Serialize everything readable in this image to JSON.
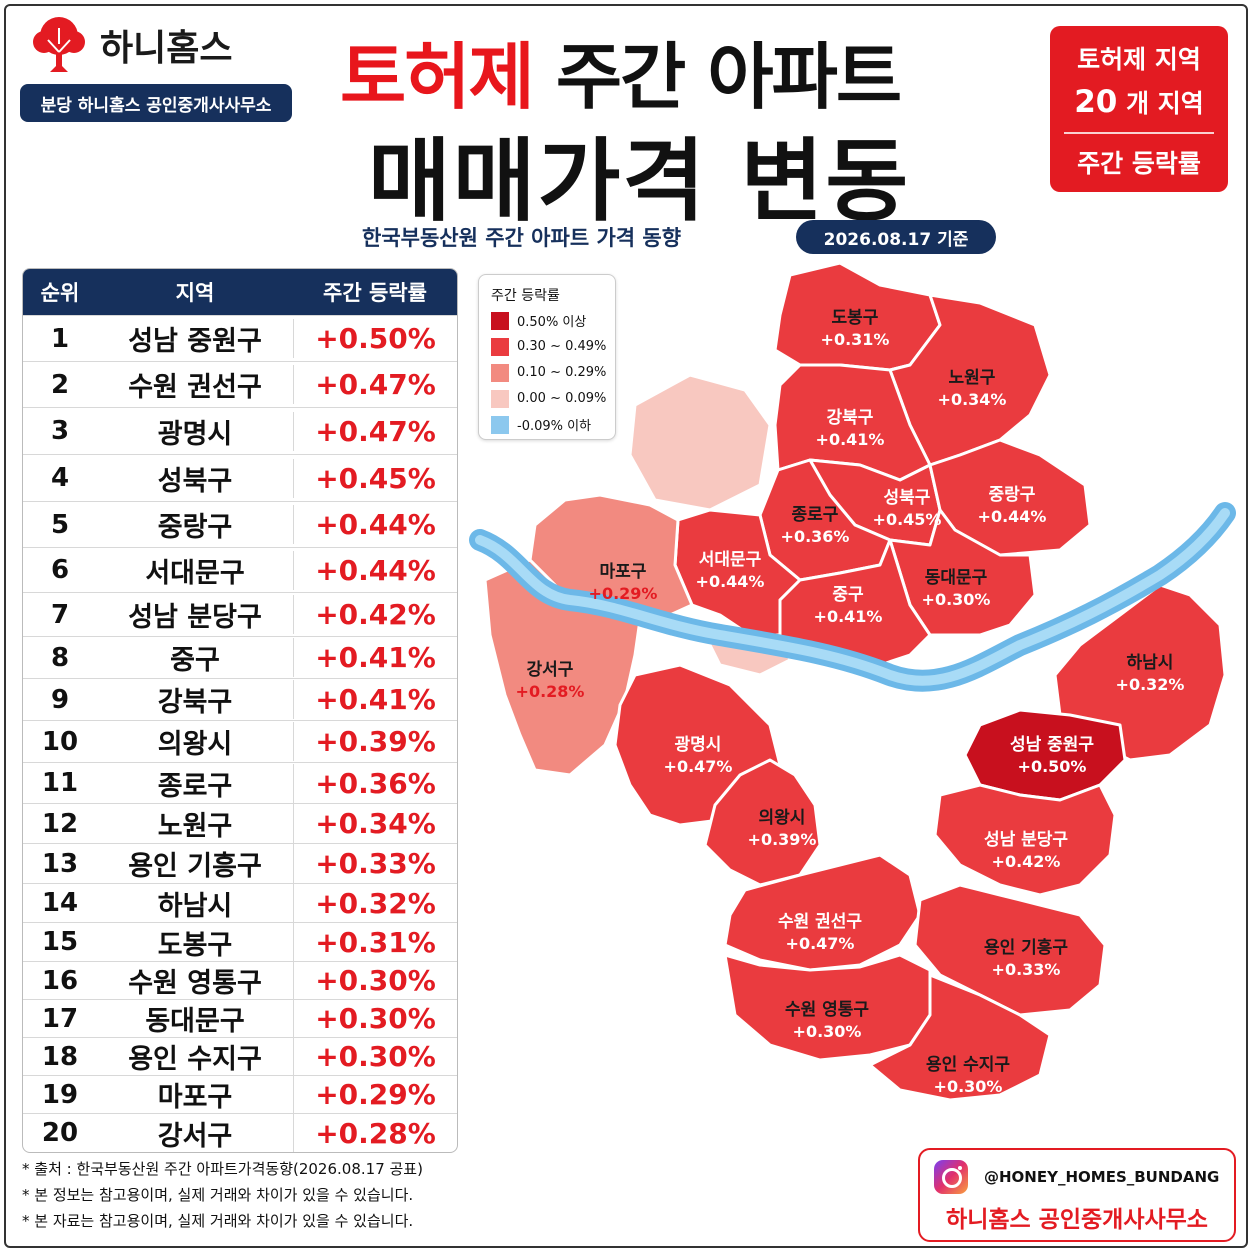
{
  "brand": {
    "name": "하니홈스",
    "office": "분당 하니홈스 공인중개사사무소"
  },
  "header": {
    "title_red": "토허제",
    "title_rest": "주간 아파트",
    "title_line2": "매매가격 변동",
    "subtitle": "한국부동산원 주간 아파트 가격 동향",
    "date": "2026.08.17 기준"
  },
  "badge": {
    "line1": "토허제 지역",
    "count": "20",
    "count_unit": "개 지역",
    "line3": "주간 등락률"
  },
  "table": {
    "headers": [
      "순위",
      "지역",
      "주간 등락률"
    ],
    "rows": [
      {
        "rank": "1",
        "region": "성남 중원구",
        "change": "+0.50%"
      },
      {
        "rank": "2",
        "region": "수원 권선구",
        "change": "+0.47%"
      },
      {
        "rank": "3",
        "region": "광명시",
        "change": "+0.47%"
      },
      {
        "rank": "4",
        "region": "성북구",
        "change": "+0.45%"
      },
      {
        "rank": "5",
        "region": "중랑구",
        "change": "+0.44%"
      },
      {
        "rank": "6",
        "region": "서대문구",
        "change": "+0.44%"
      },
      {
        "rank": "7",
        "region": "성남 분당구",
        "change": "+0.42%"
      },
      {
        "rank": "8",
        "region": "중구",
        "change": "+0.41%"
      },
      {
        "rank": "9",
        "region": "강북구",
        "change": "+0.41%"
      },
      {
        "rank": "10",
        "region": "의왕시",
        "change": "+0.39%"
      },
      {
        "rank": "11",
        "region": "종로구",
        "change": "+0.36%"
      },
      {
        "rank": "12",
        "region": "노원구",
        "change": "+0.34%"
      },
      {
        "rank": "13",
        "region": "용인 기흥구",
        "change": "+0.33%"
      },
      {
        "rank": "14",
        "region": "하남시",
        "change": "+0.32%"
      },
      {
        "rank": "15",
        "region": "도봉구",
        "change": "+0.31%"
      },
      {
        "rank": "16",
        "region": "수원 영통구",
        "change": "+0.30%"
      },
      {
        "rank": "17",
        "region": "동대문구",
        "change": "+0.30%"
      },
      {
        "rank": "18",
        "region": "용인 수지구",
        "change": "+0.30%"
      },
      {
        "rank": "19",
        "region": "마포구",
        "change": "+0.29%"
      },
      {
        "rank": "20",
        "region": "강서구",
        "change": "+0.28%"
      }
    ]
  },
  "legend": {
    "title": "주간 등락률",
    "items": [
      {
        "label": "0.50% 이상",
        "color": "#c8101e"
      },
      {
        "label": "0.30 ~ 0.49%",
        "color": "#ea3b3f"
      },
      {
        "label": "0.10 ~ 0.29%",
        "color": "#f28a80"
      },
      {
        "label": "0.00 ~ 0.09%",
        "color": "#f8c8c0"
      },
      {
        "label": "-0.09% 이하",
        "color": "#8cc8ee"
      }
    ]
  },
  "chart_data": {
    "type": "choropleth",
    "regions": [
      {
        "name": "도봉구",
        "value": "+0.31%"
      },
      {
        "name": "노원구",
        "value": "+0.34%"
      },
      {
        "name": "강북구",
        "value": "+0.41%"
      },
      {
        "name": "성북구",
        "value": "+0.45%"
      },
      {
        "name": "중랑구",
        "value": "+0.44%"
      },
      {
        "name": "종로구",
        "value": "+0.36%"
      },
      {
        "name": "서대문구",
        "value": "+0.44%"
      },
      {
        "name": "마포구",
        "value": "+0.29%"
      },
      {
        "name": "동대문구",
        "value": "+0.30%"
      },
      {
        "name": "중구",
        "value": "+0.41%"
      },
      {
        "name": "강서구",
        "value": "+0.28%"
      },
      {
        "name": "하남시",
        "value": "+0.32%"
      },
      {
        "name": "광명시",
        "value": "+0.47%"
      },
      {
        "name": "성남 중원구",
        "value": "+0.50%"
      },
      {
        "name": "의왕시",
        "value": "+0.39%"
      },
      {
        "name": "성남 분당구",
        "value": "+0.42%"
      },
      {
        "name": "수원 권선구",
        "value": "+0.47%"
      },
      {
        "name": "용인 기흥구",
        "value": "+0.33%"
      },
      {
        "name": "수원 영통구",
        "value": "+0.30%"
      },
      {
        "name": "용인 수지구",
        "value": "+0.30%"
      }
    ]
  },
  "footnotes": [
    "* 출처 : 한국부동산원 주간 아파트가격동향(2026.08.17 공표)",
    "* 본 정보는 참고용이며, 실제 거래와 차이가 있을 수 있습니다.",
    "* 본 자료는 참고용이며, 실제 거래와 차이가 있을 수 있습니다."
  ],
  "contact": {
    "instagram": "@HONEY_HOMES_BUNDANG",
    "name": "하니홈스 공인중개사사무소"
  }
}
